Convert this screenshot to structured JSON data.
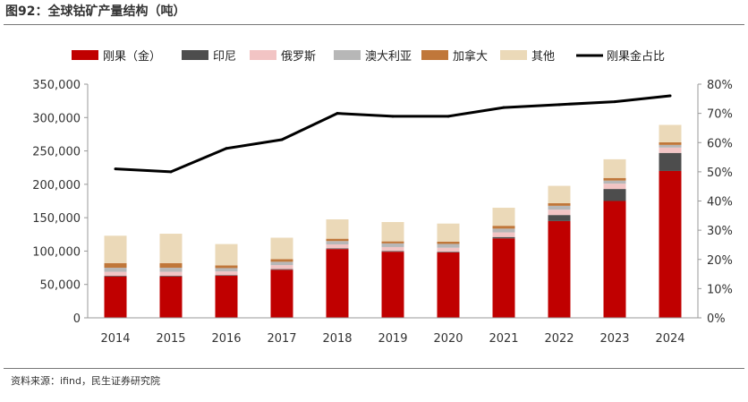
{
  "figure": {
    "title": "图92：全球钴矿产量结构（吨）",
    "source": "资料来源：ifind，民生证券研究院"
  },
  "chart_data": {
    "type": "bar",
    "stacked": true,
    "categories": [
      "2014",
      "2015",
      "2016",
      "2017",
      "2018",
      "2019",
      "2020",
      "2021",
      "2022",
      "2023",
      "2024"
    ],
    "series": [
      {
        "name": "刚果（金）",
        "color": "#c00000",
        "values": [
          62000,
          62000,
          63000,
          72000,
          103000,
          99000,
          98000,
          119000,
          145000,
          175000,
          220000
        ]
      },
      {
        "name": "印尼",
        "color": "#4d4d4d",
        "values": [
          1000,
          1000,
          1000,
          1000,
          1000,
          1000,
          1000,
          2000,
          9000,
          18000,
          27000
        ]
      },
      {
        "name": "俄罗斯",
        "color": "#f2c4c4",
        "values": [
          6000,
          6000,
          5500,
          6000,
          6000,
          6000,
          6000,
          7000,
          8000,
          8000,
          8000
        ]
      },
      {
        "name": "澳大利亚",
        "color": "#b7b7b7",
        "values": [
          6000,
          6000,
          5000,
          5000,
          5000,
          5500,
          5700,
          5600,
          5800,
          4600,
          4000
        ]
      },
      {
        "name": "加拿大",
        "color": "#c0773a",
        "values": [
          7000,
          7000,
          4000,
          4000,
          3500,
          3000,
          3500,
          4300,
          3900,
          3900,
          4000
        ]
      },
      {
        "name": "其他",
        "color": "#ebd9b8",
        "values": [
          41000,
          44000,
          32000,
          32000,
          29000,
          29000,
          27000,
          27000,
          26000,
          28000,
          26000
        ]
      }
    ],
    "line_series": {
      "name": "刚果金占比",
      "color": "#000000",
      "values": [
        51,
        50,
        58,
        61,
        70,
        69,
        69,
        72,
        73,
        74,
        76
      ],
      "unit": "%"
    },
    "y_left": {
      "min": 0,
      "max": 350000,
      "ticks": [
        0,
        50000,
        100000,
        150000,
        200000,
        250000,
        300000,
        350000
      ],
      "tick_labels": [
        "0",
        "50,000",
        "100,000",
        "150,000",
        "200,000",
        "250,000",
        "300,000",
        "350,000"
      ]
    },
    "y_right": {
      "min": 0,
      "max": 80,
      "ticks": [
        0,
        10,
        20,
        30,
        40,
        50,
        60,
        70,
        80
      ],
      "tick_labels": [
        "0%",
        "10%",
        "20%",
        "30%",
        "40%",
        "50%",
        "60%",
        "70%",
        "80%"
      ]
    },
    "legend_position": "top",
    "grid": false
  }
}
